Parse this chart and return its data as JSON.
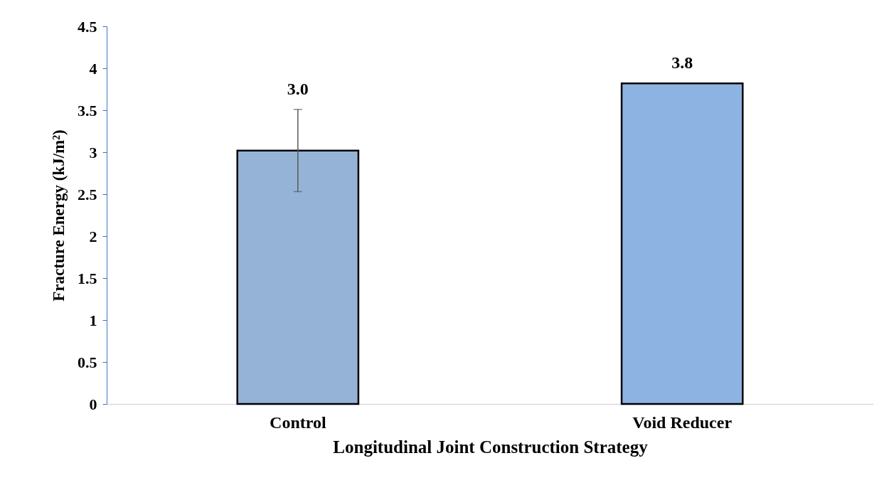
{
  "chart_data": {
    "type": "bar",
    "xlabel": "Longitudinal Joint Construction Strategy",
    "ylabel": "Fracture Energy (kJ/m²)",
    "categories": [
      "Control",
      "Void Reducer"
    ],
    "values": [
      3.02,
      3.82
    ],
    "colors": [
      "#95b3d7",
      "#8db3e2"
    ],
    "errors": [
      0.49,
      null
    ],
    "value_labels": [
      "3.0",
      "3.8"
    ],
    "ylim": [
      0,
      4.5
    ],
    "yticks": [
      0,
      0.5,
      1,
      1.5,
      2,
      2.5,
      3,
      3.5,
      4,
      4.5
    ],
    "grid": false
  }
}
